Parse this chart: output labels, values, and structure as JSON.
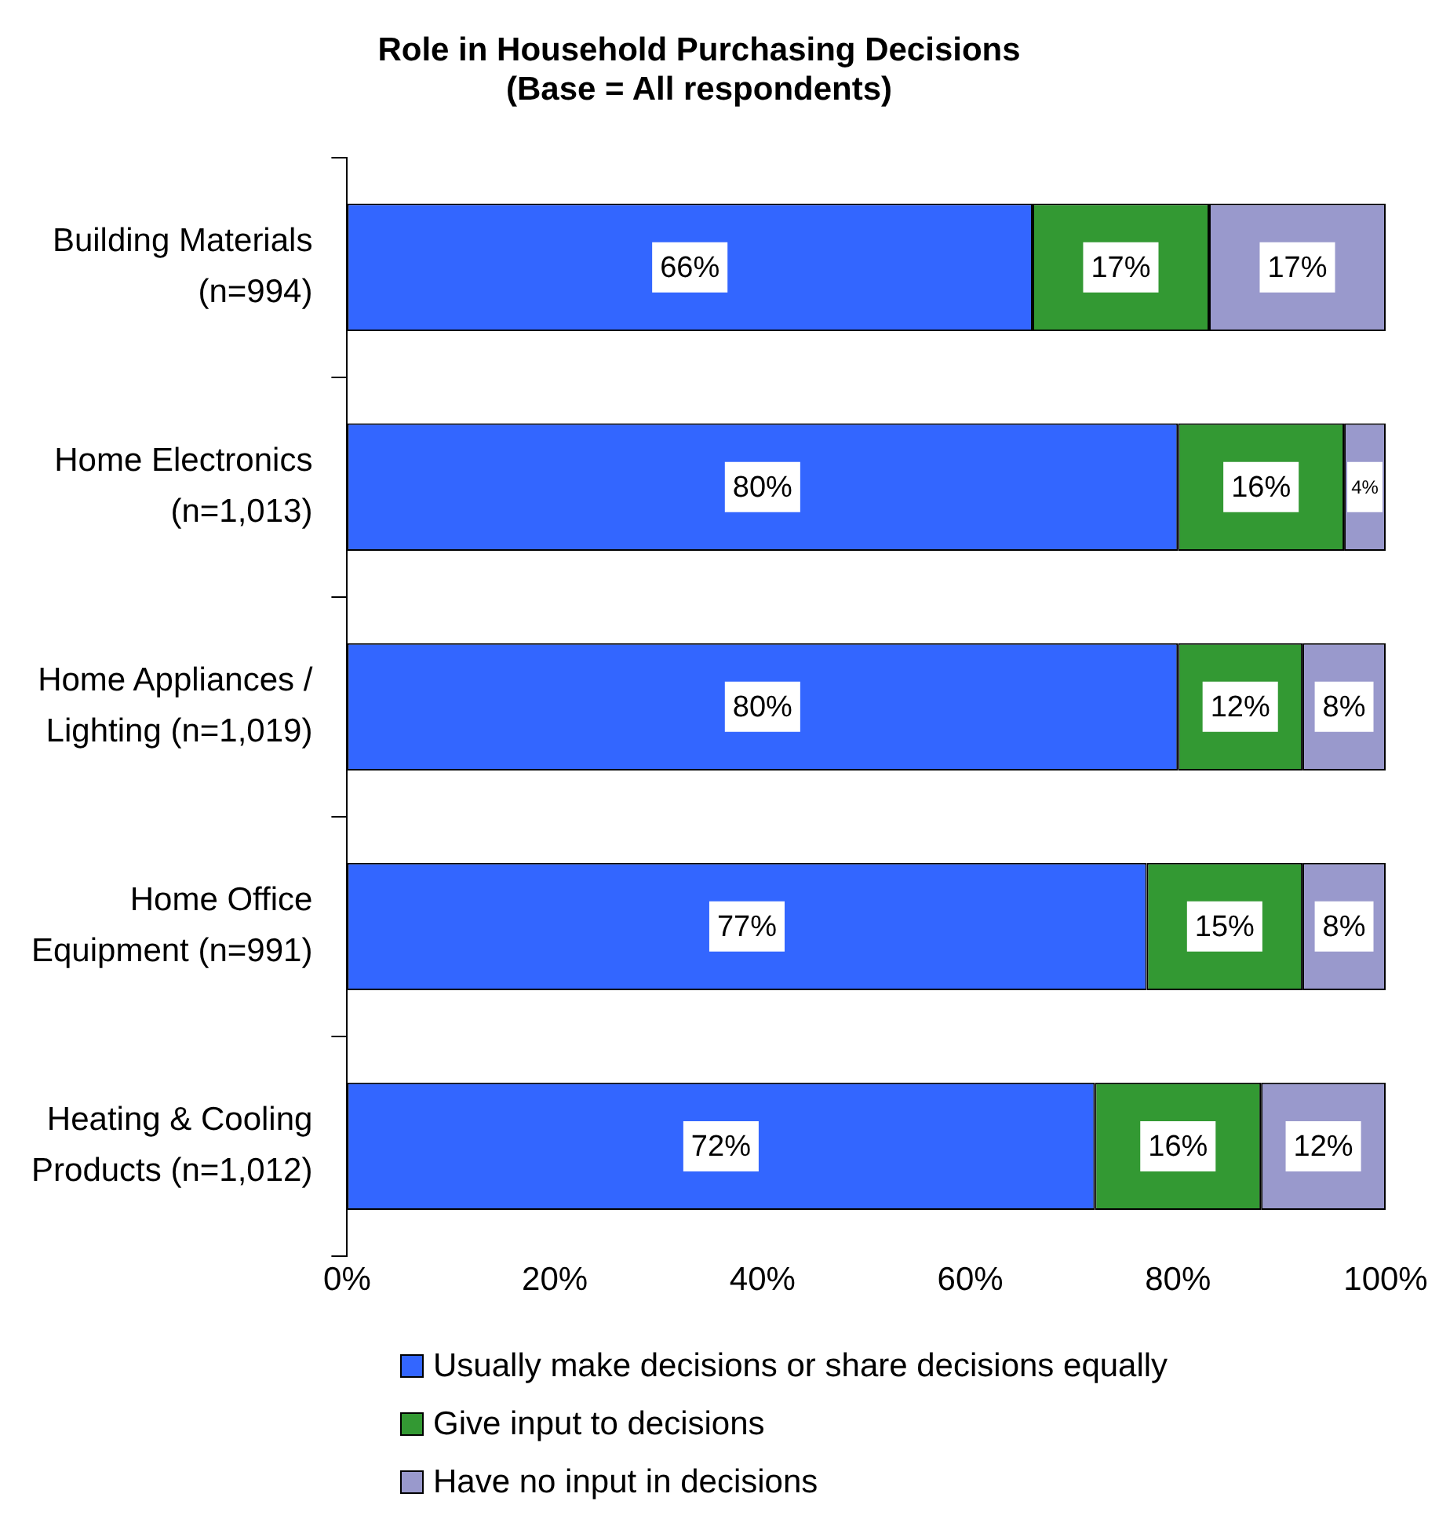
{
  "chart_data": {
    "type": "bar",
    "orientation": "horizontal",
    "stacked": true,
    "title": "Role in Household Purchasing Decisions\n(Base = All respondents)",
    "categories": [
      "Building Materials\n(n=994)",
      "Home Electronics\n(n=1,013)",
      "Home Appliances /\nLighting (n=1,019)",
      "Home Office\nEquipment (n=991)",
      "Heating & Cooling\nProducts (n=1,012)"
    ],
    "series": [
      {
        "name": "Usually make decisions or share decisions equally",
        "color": "#3366ff",
        "values": [
          66,
          80,
          80,
          77,
          72
        ],
        "value_labels": [
          "66%",
          "80%",
          "80%",
          "77%",
          "72%"
        ]
      },
      {
        "name": "Give input to decisions",
        "color": "#339933",
        "values": [
          17,
          16,
          12,
          15,
          16
        ],
        "value_labels": [
          "17%",
          "16%",
          "12%",
          "15%",
          "16%"
        ]
      },
      {
        "name": "Have no input in decisions",
        "color": "#9999cc",
        "values": [
          17,
          4,
          8,
          8,
          12
        ],
        "value_labels": [
          "17%",
          "4%",
          "8%",
          "8%",
          "12%"
        ]
      }
    ],
    "xlim": [
      0,
      100
    ],
    "xticks": [
      {
        "value": 0,
        "label": "0%"
      },
      {
        "value": 20,
        "label": "20%"
      },
      {
        "value": 40,
        "label": "40%"
      },
      {
        "value": 60,
        "label": "60%"
      },
      {
        "value": 80,
        "label": "80%"
      },
      {
        "value": 100,
        "label": "100%"
      }
    ],
    "grid": false,
    "legend": "bottom"
  }
}
